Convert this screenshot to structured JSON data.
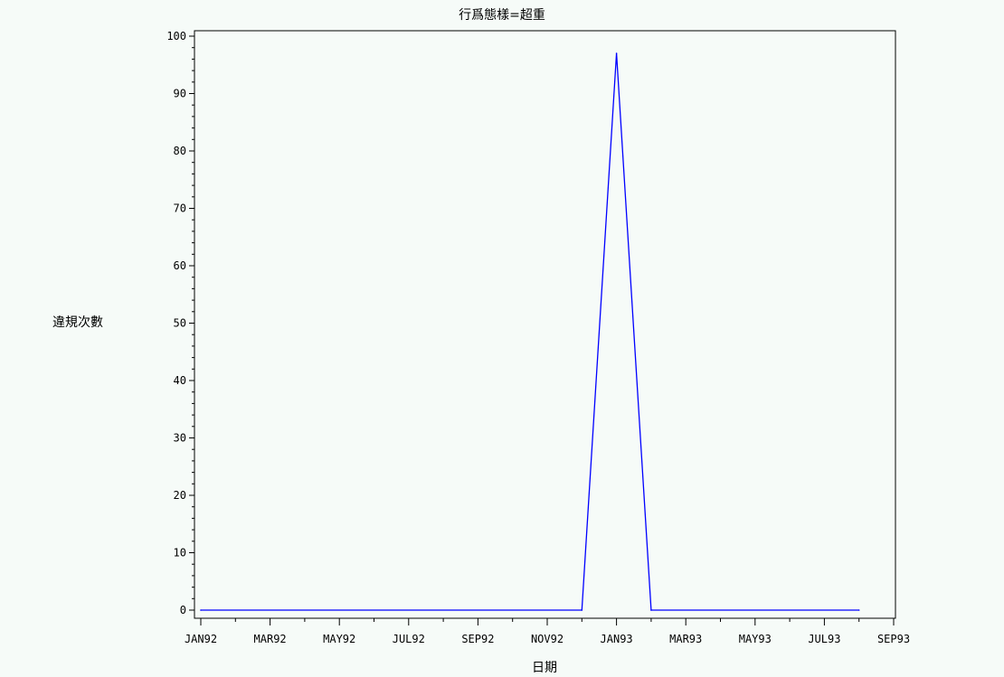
{
  "chart_data": {
    "type": "line",
    "title": "行爲態樣=超重",
    "xlabel": "日期",
    "ylabel": "違規次數",
    "x_ticks": [
      "JAN92",
      "MAR92",
      "MAY92",
      "JUL92",
      "SEP92",
      "NOV92",
      "JAN93",
      "MAR93",
      "MAY93",
      "JUL93",
      "SEP93"
    ],
    "ylim": [
      0,
      100
    ],
    "y_ticks": [
      0,
      10,
      20,
      30,
      40,
      50,
      60,
      70,
      80,
      90,
      100
    ],
    "series": [
      {
        "color": "#0000ff",
        "points": [
          {
            "x": "1992-01-01",
            "y": 0
          },
          {
            "x": "1992-12-01",
            "y": 0
          },
          {
            "x": "1993-01-01",
            "y": 97
          },
          {
            "x": "1993-02-01",
            "y": 0
          },
          {
            "x": "1993-08-01",
            "y": 0
          }
        ]
      }
    ],
    "grid": false,
    "background_color": "#f6fbf8",
    "line_color": "#0000ff"
  }
}
